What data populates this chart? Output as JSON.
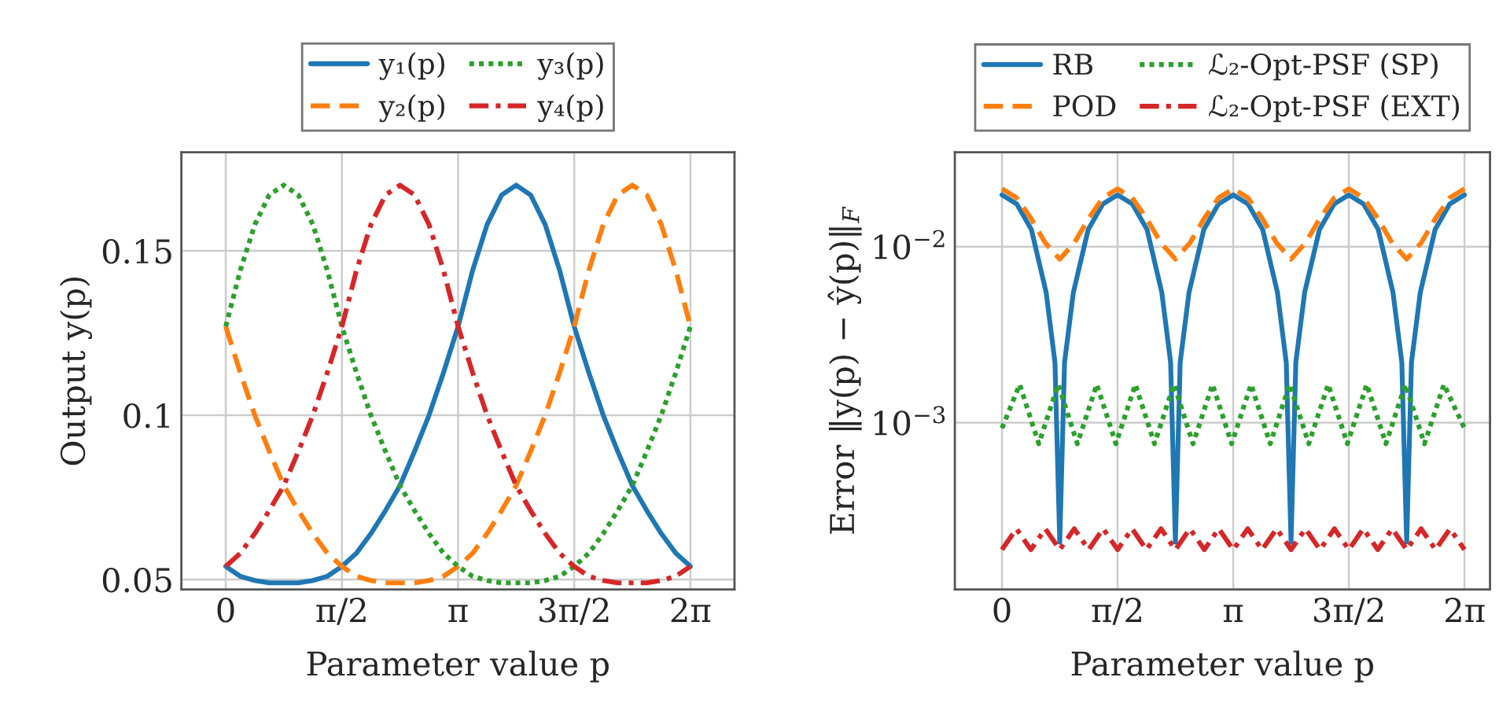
{
  "chart_data": [
    {
      "type": "line",
      "xlabel": "Parameter value p",
      "ylabel": "Output y(p)",
      "x": [
        0,
        0.196,
        0.393,
        0.589,
        0.785,
        0.982,
        1.178,
        1.374,
        1.571,
        1.767,
        1.963,
        2.16,
        2.356,
        2.553,
        2.749,
        2.945,
        3.142,
        3.338,
        3.534,
        3.731,
        3.927,
        4.123,
        4.32,
        4.516,
        4.712,
        4.909,
        5.105,
        5.301,
        5.498,
        5.694,
        5.89,
        6.087,
        6.283
      ],
      "series": [
        {
          "name": "y₁(p)",
          "color": "#1f77b4",
          "line_style": "solid",
          "values": [
            0.054,
            0.051,
            0.0497,
            0.049,
            0.049,
            0.049,
            0.0497,
            0.051,
            0.054,
            0.058,
            0.064,
            0.071,
            0.0786,
            0.089,
            0.1,
            0.113,
            0.127,
            0.144,
            0.158,
            0.167,
            0.17,
            0.167,
            0.158,
            0.144,
            0.127,
            0.113,
            0.1,
            0.089,
            0.0786,
            0.071,
            0.064,
            0.058,
            0.054
          ]
        },
        {
          "name": "y₂(p)",
          "color": "#ff7f0e",
          "line_style": "dashed",
          "values": [
            0.127,
            0.113,
            0.1,
            0.089,
            0.0786,
            0.071,
            0.064,
            0.058,
            0.054,
            0.051,
            0.0497,
            0.049,
            0.049,
            0.049,
            0.0497,
            0.051,
            0.054,
            0.058,
            0.064,
            0.071,
            0.0786,
            0.089,
            0.1,
            0.113,
            0.127,
            0.144,
            0.158,
            0.167,
            0.17,
            0.167,
            0.158,
            0.144,
            0.127
          ]
        },
        {
          "name": "y₃(p)",
          "color": "#2ca02c",
          "line_style": "dotted",
          "values": [
            0.127,
            0.144,
            0.158,
            0.167,
            0.17,
            0.167,
            0.158,
            0.144,
            0.127,
            0.113,
            0.1,
            0.089,
            0.0786,
            0.071,
            0.064,
            0.058,
            0.054,
            0.051,
            0.0497,
            0.049,
            0.049,
            0.049,
            0.0497,
            0.051,
            0.054,
            0.058,
            0.064,
            0.071,
            0.0786,
            0.089,
            0.1,
            0.113,
            0.127
          ]
        },
        {
          "name": "y₄(p)",
          "color": "#d62728",
          "line_style": "dashdot",
          "values": [
            0.054,
            0.058,
            0.064,
            0.071,
            0.0786,
            0.089,
            0.1,
            0.113,
            0.127,
            0.144,
            0.158,
            0.167,
            0.17,
            0.167,
            0.158,
            0.144,
            0.127,
            0.113,
            0.1,
            0.089,
            0.0786,
            0.071,
            0.064,
            0.058,
            0.054,
            0.051,
            0.0497,
            0.049,
            0.049,
            0.049,
            0.0497,
            0.051,
            0.054
          ]
        }
      ],
      "xlim": [
        -0.6,
        6.88
      ],
      "ylim": [
        0.047,
        0.18
      ],
      "xticks": [
        0,
        {
          "value": 1.5708,
          "label": "π/2"
        },
        {
          "value": 3.1416,
          "label": "π"
        },
        {
          "value": 4.7124,
          "label": "3π/2"
        },
        {
          "value": 6.2832,
          "label": "2π"
        }
      ],
      "yticks": [
        0.05,
        0.1,
        0.15
      ],
      "grid": true,
      "legend": "top",
      "marker": "none"
    },
    {
      "type": "line",
      "xlabel": "Parameter value p",
      "ylabel": "Error ‖y(p) − ŷ(p)‖$_{F}$",
      "log": "y",
      "x": [
        0,
        0.196,
        0.393,
        0.589,
        0.785,
        0.982,
        1.178,
        1.374,
        1.571,
        1.767,
        1.963,
        2.16,
        2.356,
        2.553,
        2.749,
        2.945,
        3.142,
        3.338,
        3.534,
        3.731,
        3.927,
        4.123,
        4.32,
        4.516,
        4.712,
        4.909,
        5.105,
        5.301,
        5.498,
        5.694,
        5.89,
        6.087,
        6.283
      ],
      "series": [
        {
          "name": "RB",
          "color": "#1f77b4",
          "line_style": "solid",
          "x": [
            0,
            0.2,
            0.4,
            0.6,
            0.72,
            0.785,
            0.85,
            0.97,
            1.171,
            1.371,
            1.571,
            1.771,
            1.971,
            2.171,
            2.291,
            2.356,
            2.421,
            2.541,
            2.742,
            2.942,
            3.142,
            3.342,
            3.542,
            3.742,
            3.862,
            3.927,
            3.992,
            4.112,
            4.313,
            4.513,
            4.712,
            4.912,
            5.112,
            5.312,
            5.432,
            5.498,
            5.563,
            5.683,
            5.884,
            6.084,
            6.283
          ],
          "values": [
            0.0197,
            0.0175,
            0.0125,
            0.0055,
            0.0022,
            0.00021,
            0.0022,
            0.0055,
            0.0125,
            0.0175,
            0.0197,
            0.0175,
            0.0125,
            0.0055,
            0.0022,
            0.00021,
            0.0022,
            0.0055,
            0.0125,
            0.0175,
            0.0197,
            0.0175,
            0.0125,
            0.0055,
            0.0022,
            0.00021,
            0.0022,
            0.0055,
            0.0125,
            0.0175,
            0.0197,
            0.0175,
            0.0125,
            0.0055,
            0.0022,
            0.00021,
            0.0022,
            0.0055,
            0.0125,
            0.0175,
            0.0197
          ]
        },
        {
          "name": "POD",
          "color": "#ff7f0e",
          "line_style": "dashed",
          "values": [
            0.0213,
            0.019,
            0.0145,
            0.0105,
            0.0085,
            0.0105,
            0.0145,
            0.019,
            0.0213,
            0.019,
            0.0145,
            0.0105,
            0.0085,
            0.0105,
            0.0145,
            0.019,
            0.0213,
            0.019,
            0.0145,
            0.0105,
            0.0085,
            0.0105,
            0.0145,
            0.019,
            0.0213,
            0.019,
            0.0145,
            0.0105,
            0.0085,
            0.0105,
            0.0145,
            0.019,
            0.0213
          ]
        },
        {
          "name": "ℒ₂-Opt-PSF (SP)",
          "color": "#2ca02c",
          "line_style": "dotted",
          "x": [
            0,
            0.24,
            0.5,
            0.764,
            1.024,
            1.288,
            1.548,
            1.812,
            2.072,
            2.336,
            2.596,
            2.86,
            3.12,
            3.384,
            3.644,
            3.908,
            4.168,
            4.432,
            4.692,
            4.956,
            5.216,
            5.48,
            5.74,
            6.004,
            6.283
          ],
          "values": [
            0.00093,
            0.00165,
            0.00076,
            0.00165,
            0.00076,
            0.00165,
            0.00076,
            0.00165,
            0.00076,
            0.00165,
            0.00076,
            0.00165,
            0.00076,
            0.00165,
            0.00076,
            0.00165,
            0.00076,
            0.00165,
            0.00076,
            0.00165,
            0.00076,
            0.00165,
            0.00076,
            0.00165,
            0.00093
          ]
        },
        {
          "name": "ℒ₂-Opt-PSF (EXT)",
          "color": "#d62728",
          "line_style": "dashdot",
          "values": [
            0.00019,
            0.00025,
            0.00019,
            0.00025,
            0.00019,
            0.00025,
            0.00019,
            0.00025,
            0.00019,
            0.00025,
            0.00019,
            0.00025,
            0.00019,
            0.00025,
            0.00019,
            0.00025,
            0.00019,
            0.00025,
            0.00019,
            0.00025,
            0.00019,
            0.00025,
            0.00019,
            0.00025,
            0.00019,
            0.00025,
            0.00019,
            0.00025,
            0.00019,
            0.00025,
            0.00019,
            0.00025,
            0.00019
          ]
        }
      ],
      "xlim": [
        -0.64,
        6.63
      ],
      "ylim": [
        0.000113,
        0.0344
      ],
      "xticks": [
        0,
        {
          "value": 1.5708,
          "label": "π/2"
        },
        {
          "value": 3.1416,
          "label": "π"
        },
        {
          "value": 4.7124,
          "label": "3π/2"
        },
        {
          "value": 6.2832,
          "label": "2π"
        }
      ],
      "yticks": [
        {
          "value": 0.01,
          "label": "10$^{−2}$"
        },
        {
          "value": 0.001,
          "label": "10$^{−3}$"
        }
      ],
      "grid": true,
      "legend": "top",
      "marker": "none"
    }
  ]
}
